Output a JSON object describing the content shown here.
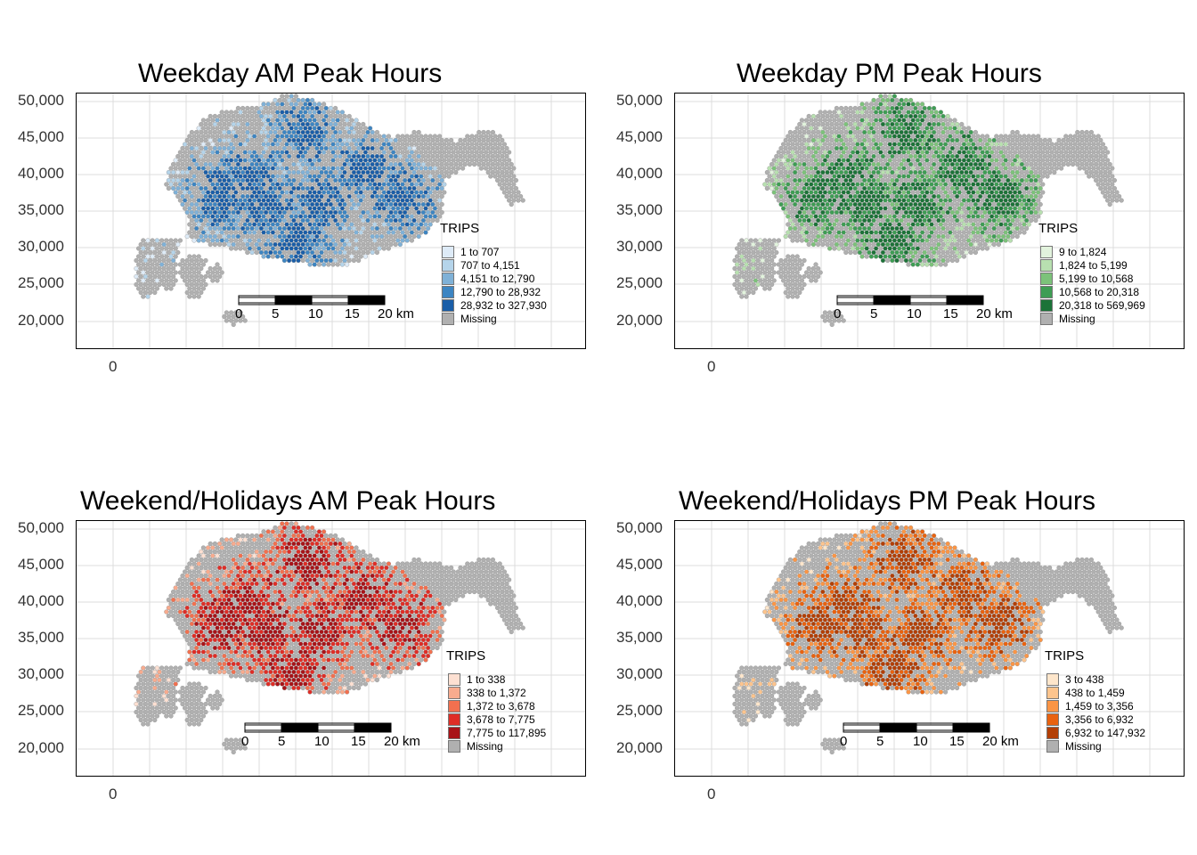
{
  "y_ticks": [
    "50,000",
    "45,000",
    "40,000",
    "35,000",
    "30,000",
    "25,000",
    "20,000"
  ],
  "x_tick": "0",
  "scalebar": {
    "labels": [
      "0",
      "5",
      "10",
      "15",
      "20 km"
    ]
  },
  "missing_color": "#b0b0b0",
  "panels": [
    {
      "title": "Weekday AM Peak Hours",
      "legend_title": "TRIPS",
      "legend": [
        {
          "label": "1 to 707",
          "color": "#deebf7"
        },
        {
          "label": "707 to 4,151",
          "color": "#b5d4ea"
        },
        {
          "label": "4,151 to 12,790",
          "color": "#7fb1d7"
        },
        {
          "label": "12,790 to 28,932",
          "color": "#3d85c2"
        },
        {
          "label": "28,932 to 327,930",
          "color": "#1a5ea8"
        },
        {
          "label": "Missing",
          "color": "#b0b0b0"
        }
      ],
      "map_color": "#4e7fab"
    },
    {
      "title": "Weekday PM Peak Hours",
      "legend_title": "TRIPS",
      "legend": [
        {
          "label": "9 to 1,824",
          "color": "#e2f3dd"
        },
        {
          "label": "1,824 to 5,199",
          "color": "#b8e0b0"
        },
        {
          "label": "5,199 to 10,568",
          "color": "#7cc27a"
        },
        {
          "label": "10,568 to 20,318",
          "color": "#3e9d54"
        },
        {
          "label": "20,318 to 569,969",
          "color": "#1c7338"
        },
        {
          "label": "Missing",
          "color": "#b0b0b0"
        }
      ],
      "map_color": "#3f8a52"
    },
    {
      "title": "Weekend/Holidays AM Peak Hours",
      "legend_title": "TRIPS",
      "legend": [
        {
          "label": "1 to 338",
          "color": "#fde0d2"
        },
        {
          "label": "338 to 1,372",
          "color": "#f8ab8e"
        },
        {
          "label": "1,372 to 3,678",
          "color": "#f2704f"
        },
        {
          "label": "3,678 to 7,775",
          "color": "#df2d26"
        },
        {
          "label": "7,775 to 117,895",
          "color": "#a81318"
        },
        {
          "label": "Missing",
          "color": "#b0b0b0"
        }
      ],
      "map_color": "#b6403b"
    },
    {
      "title": "Weekend/Holidays PM Peak Hours",
      "legend_title": "TRIPS",
      "legend": [
        {
          "label": "3 to 438",
          "color": "#fee6cb"
        },
        {
          "label": "438 to 1,459",
          "color": "#fdc48d"
        },
        {
          "label": "1,459 to 3,356",
          "color": "#fb9545"
        },
        {
          "label": "3,356 to 6,932",
          "color": "#e9620f"
        },
        {
          "label": "6,932 to 147,932",
          "color": "#b33f05"
        },
        {
          "label": "Missing",
          "color": "#b0b0b0"
        }
      ],
      "map_color": "#c0661d"
    }
  ]
}
